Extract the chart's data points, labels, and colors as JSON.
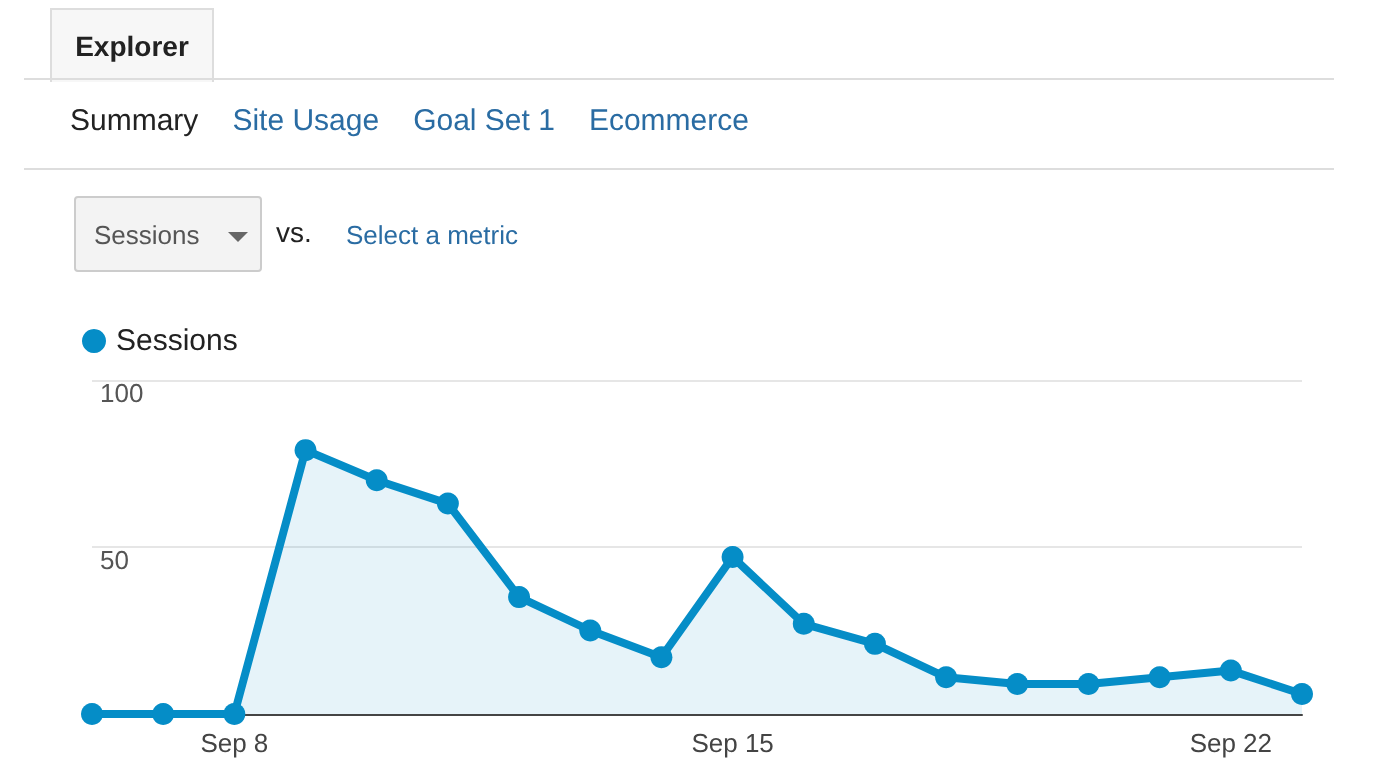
{
  "chart_data": {
    "type": "area",
    "annotations": [
      "Explorer",
      "Summary",
      "Site Usage",
      "Goal Set 1",
      "Ecommerce",
      "Sessions",
      "vs.",
      "Select a metric"
    ],
    "categories": [
      null,
      null,
      "Sep 8",
      null,
      null,
      null,
      null,
      null,
      null,
      "Sep 15",
      null,
      null,
      null,
      null,
      null,
      null,
      "Sep 22",
      null
    ],
    "series": [
      {
        "name": "Sessions",
        "color": "#058dc7",
        "values": [
          0,
          0,
          0,
          79,
          70,
          63,
          35,
          25,
          17,
          47,
          27,
          21,
          11,
          9,
          9,
          11,
          13,
          6
        ]
      }
    ],
    "ylim": [
      0,
      100
    ],
    "yticks": [
      50,
      100
    ],
    "grid": "y",
    "legend": "top left",
    "marker": "circle"
  }
}
